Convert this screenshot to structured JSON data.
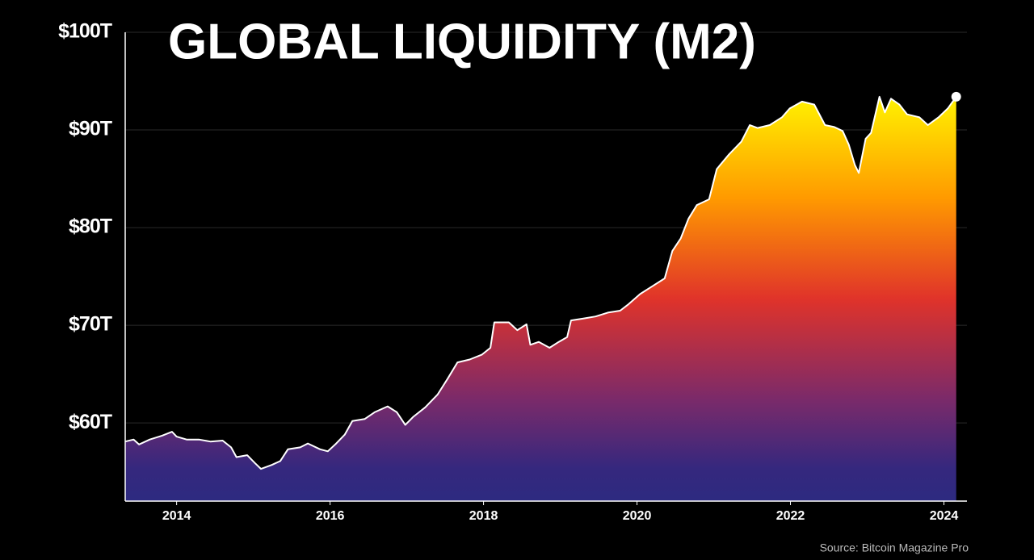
{
  "chart_data": {
    "type": "area",
    "title": "GLOBAL LIQUIDITY (M2)",
    "source": "Source: Bitcoin Magazine Pro",
    "x": [
      2013.33,
      2013.44,
      2013.51,
      2013.65,
      2013.81,
      2013.94,
      2014.0,
      2014.13,
      2014.29,
      2014.44,
      2014.6,
      2014.71,
      2014.78,
      2014.92,
      2015.02,
      2015.1,
      2015.24,
      2015.35,
      2015.45,
      2015.61,
      2015.71,
      2015.87,
      2015.97,
      2016.08,
      2016.19,
      2016.29,
      2016.45,
      2016.58,
      2016.75,
      2016.87,
      2016.98,
      2017.08,
      2017.24,
      2017.4,
      2017.53,
      2017.66,
      2017.82,
      2017.98,
      2018.09,
      2018.14,
      2018.33,
      2018.44,
      2018.56,
      2018.61,
      2018.72,
      2018.86,
      2018.98,
      2019.09,
      2019.14,
      2019.3,
      2019.46,
      2019.62,
      2019.78,
      2019.88,
      2020.04,
      2020.2,
      2020.36,
      2020.46,
      2020.57,
      2020.67,
      2020.78,
      2020.94,
      2021.04,
      2021.2,
      2021.36,
      2021.47,
      2021.57,
      2021.73,
      2021.89,
      2021.99,
      2022.15,
      2022.31,
      2022.45,
      2022.57,
      2022.68,
      2022.76,
      2022.84,
      2022.89,
      2022.98,
      2023.05,
      2023.16,
      2023.23,
      2023.31,
      2023.42,
      2023.52,
      2023.68,
      2023.79,
      2023.93,
      2024.05,
      2024.16
    ],
    "series": [
      {
        "values": [
          58.1,
          58.3,
          57.8,
          58.3,
          58.7,
          59.1,
          58.6,
          58.3,
          58.3,
          58.1,
          58.2,
          57.5,
          56.5,
          56.7,
          55.9,
          55.3,
          55.7,
          56.1,
          57.3,
          57.5,
          57.9,
          57.3,
          57.1,
          57.9,
          58.8,
          60.2,
          60.4,
          61.1,
          61.7,
          61.1,
          59.8,
          60.6,
          61.6,
          62.9,
          64.5,
          66.2,
          66.5,
          67.0,
          67.7,
          70.3,
          70.3,
          69.5,
          70.1,
          68.0,
          68.3,
          67.7,
          68.3,
          68.8,
          70.5,
          70.7,
          70.9,
          71.3,
          71.5,
          72.1,
          73.2,
          74.0,
          74.8,
          77.6,
          78.9,
          80.9,
          82.3,
          82.9,
          86.0,
          87.5,
          88.8,
          90.5,
          90.2,
          90.5,
          91.3,
          92.2,
          92.9,
          92.6,
          90.5,
          90.3,
          89.9,
          88.5,
          86.4,
          85.6,
          89.1,
          89.7,
          93.4,
          91.8,
          93.2,
          92.6,
          91.6,
          91.3,
          90.5,
          91.3,
          92.2,
          93.4
        ]
      }
    ],
    "xlim": [
      2013.33,
      2024.3
    ],
    "xticks": [
      2014,
      2016,
      2018,
      2020,
      2022,
      2024
    ],
    "ylim": [
      52,
      100
    ],
    "yticks": [
      {
        "value": 60,
        "label": "$60T"
      },
      {
        "value": 70,
        "label": "$70T"
      },
      {
        "value": 80,
        "label": "$80T"
      },
      {
        "value": 90,
        "label": "$90T"
      },
      {
        "value": 100,
        "label": "$100T"
      }
    ],
    "grid": true
  }
}
